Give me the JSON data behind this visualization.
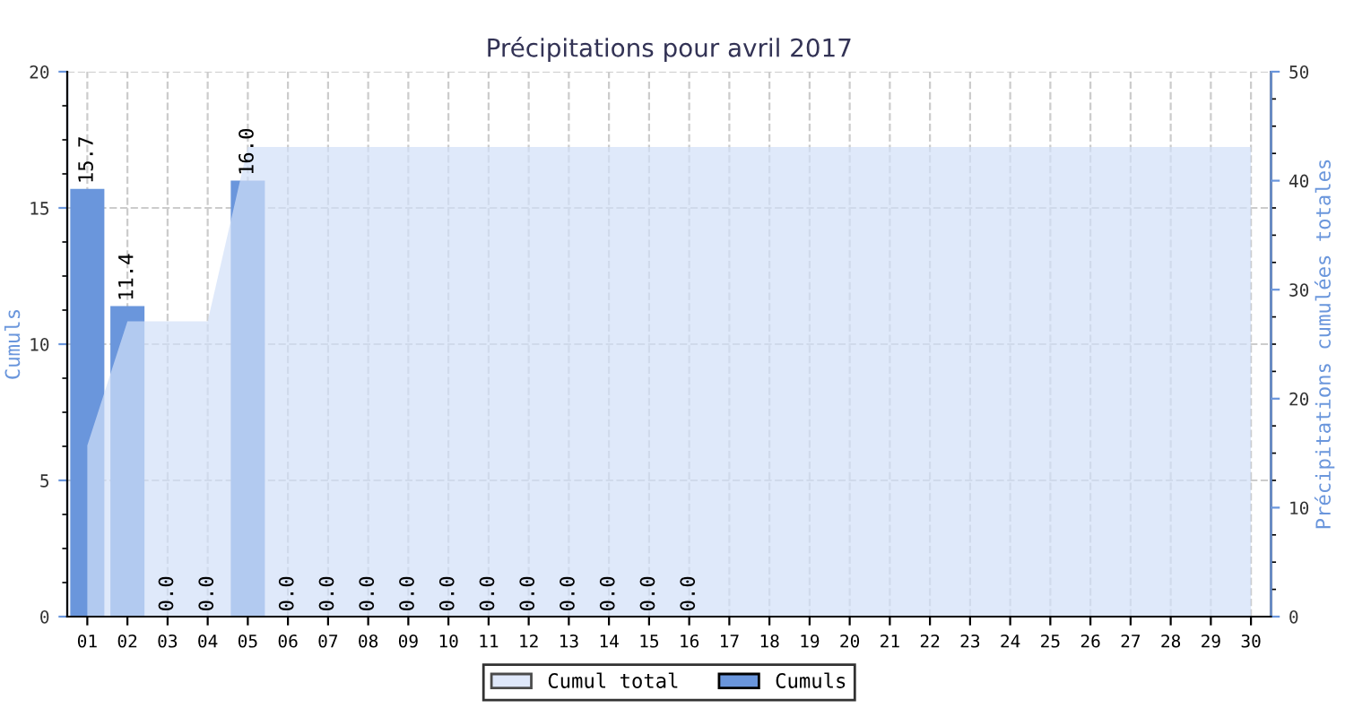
{
  "chart_data": {
    "type": "bar",
    "title": "Précipitations pour avril 2017",
    "ylabel": "Cumuls",
    "y2label": "Précipitations cumulées totales",
    "categories": [
      "01",
      "02",
      "03",
      "04",
      "05",
      "06",
      "07",
      "08",
      "09",
      "10",
      "11",
      "12",
      "13",
      "14",
      "15",
      "16",
      "17",
      "18",
      "19",
      "20",
      "21",
      "22",
      "23",
      "24",
      "25",
      "26",
      "27",
      "28",
      "29",
      "30"
    ],
    "series": [
      {
        "name": "Cumul total",
        "type": "area",
        "axis": "y2",
        "color": "#d2dff8",
        "values": [
          15.7,
          27.1,
          27.1,
          27.1,
          43.1,
          43.1,
          43.1,
          43.1,
          43.1,
          43.1,
          43.1,
          43.1,
          43.1,
          43.1,
          43.1,
          43.1,
          43.1,
          43.1,
          43.1,
          43.1,
          43.1,
          43.1,
          43.1,
          43.1,
          43.1,
          43.1,
          43.1,
          43.1,
          43.1,
          43.1
        ]
      },
      {
        "name": "Cumuls",
        "color": "#6a96dc",
        "values": [
          15.7,
          11.4,
          0.0,
          0.0,
          16.0,
          0.0,
          0.0,
          0.0,
          0.0,
          0.0,
          0.0,
          0.0,
          0.0,
          0.0,
          0.0,
          0.0,
          null,
          null,
          null,
          null,
          null,
          null,
          null,
          null,
          null,
          null,
          null,
          null,
          null,
          null
        ],
        "value_labels": [
          "15.7",
          "11.4",
          "0.0",
          "0.0",
          "16.0",
          "0.0",
          "0.0",
          "0.0",
          "0.0",
          "0.0",
          "0.0",
          "0.0",
          "0.0",
          "0.0",
          "0.0",
          "0.0",
          null,
          null,
          null,
          null,
          null,
          null,
          null,
          null,
          null,
          null,
          null,
          null,
          null,
          null
        ]
      }
    ],
    "ylim": [
      0,
      20
    ],
    "yticks": [
      0,
      5,
      10,
      15,
      20
    ],
    "y2lim": [
      0,
      50
    ],
    "y2ticks": [
      0,
      10,
      20,
      30,
      40,
      50
    ],
    "grid": true,
    "legend": "bottom"
  }
}
